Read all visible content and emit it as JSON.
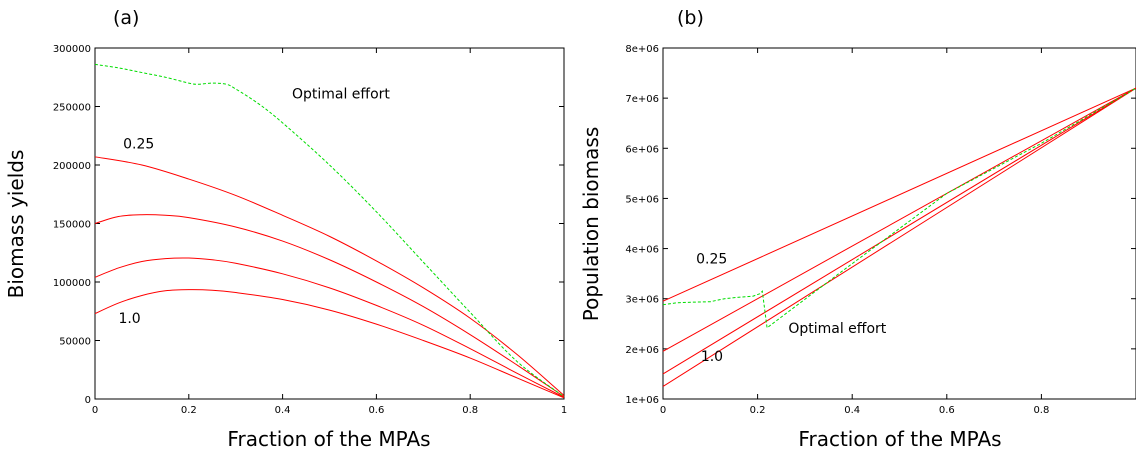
{
  "chart_data": [
    {
      "panel_label": "(a)",
      "type": "line",
      "xlabel": "Fraction of the MPAs",
      "ylabel": "Biomass yields",
      "xlim": [
        0,
        1
      ],
      "ylim": [
        0,
        300000
      ],
      "xticks": [
        0,
        0.2,
        0.4,
        0.6,
        0.8,
        1
      ],
      "xtick_labels": [
        "0",
        "0.2",
        "0.4",
        "0.6",
        "0.8",
        "1"
      ],
      "yticks": [
        0,
        50000,
        100000,
        150000,
        200000,
        250000,
        300000
      ],
      "ytick_labels": [
        "0",
        "50000",
        "100000",
        "150000",
        "200000",
        "250000",
        "300000"
      ],
      "grid": false,
      "series": [
        {
          "color": "#ff0000",
          "dashed": false,
          "x": [
            0,
            0.1,
            0.2,
            0.3,
            0.4,
            0.5,
            0.6,
            0.7,
            0.8,
            0.9,
            1.0
          ],
          "y": [
            207000,
            200000,
            188000,
            174000,
            157000,
            139000,
            118000,
            95000,
            69000,
            38000,
            3000
          ]
        },
        {
          "color": "#ff0000",
          "dashed": false,
          "x": [
            0,
            0.05,
            0.1,
            0.15,
            0.2,
            0.3,
            0.4,
            0.5,
            0.6,
            0.7,
            0.8,
            0.9,
            1.0
          ],
          "y": [
            150000,
            156000,
            157500,
            157000,
            155000,
            147000,
            135000,
            119000,
            100000,
            79000,
            55000,
            29000,
            2000
          ]
        },
        {
          "color": "#ff0000",
          "dashed": false,
          "x": [
            0,
            0.05,
            0.1,
            0.15,
            0.2,
            0.25,
            0.3,
            0.4,
            0.5,
            0.6,
            0.7,
            0.8,
            0.9,
            1.0
          ],
          "y": [
            104000,
            112000,
            117500,
            120000,
            120500,
            119000,
            116000,
            107000,
            95000,
            80000,
            63000,
            43000,
            22000,
            1500
          ]
        },
        {
          "color": "#ff0000",
          "dashed": false,
          "x": [
            0,
            0.05,
            0.1,
            0.15,
            0.2,
            0.25,
            0.3,
            0.4,
            0.5,
            0.6,
            0.7,
            0.8,
            0.9,
            1.0
          ],
          "y": [
            73000,
            82000,
            88500,
            92500,
            93500,
            93000,
            91000,
            85000,
            76000,
            64000,
            50000,
            35000,
            18000,
            1000
          ]
        },
        {
          "color": "#00dd00",
          "dashed": true,
          "x": [
            0,
            0.05,
            0.1,
            0.15,
            0.2,
            0.22,
            0.25,
            0.28,
            0.3,
            0.35,
            0.4,
            0.5,
            0.6,
            0.7,
            0.8,
            0.9,
            1.0
          ],
          "y": [
            286000,
            283000,
            279000,
            275000,
            270000,
            269000,
            270000,
            269000,
            265000,
            252000,
            236000,
            200000,
            160000,
            117000,
            74000,
            32000,
            2000
          ]
        }
      ],
      "annotations": [
        {
          "text": "Optimal effort",
          "x": 0.42,
          "y": 257000
        },
        {
          "text": "0.25",
          "x": 0.06,
          "y": 214000
        },
        {
          "text": "1.0",
          "x": 0.05,
          "y": 65000
        }
      ]
    },
    {
      "panel_label": "(b)",
      "type": "line",
      "xlabel": "Fraction of the MPAs",
      "ylabel": "Population biomass",
      "xlim": [
        0,
        1
      ],
      "ylim": [
        1000000,
        8000000
      ],
      "xticks": [
        0,
        0.2,
        0.4,
        0.6,
        0.8
      ],
      "xtick_labels": [
        "0",
        "0.2",
        "0.4",
        "0.6",
        "0.8"
      ],
      "yticks": [
        1000000,
        2000000,
        3000000,
        4000000,
        5000000,
        6000000,
        7000000,
        8000000
      ],
      "ytick_labels": [
        "1e+06",
        "2e+06",
        "3e+06",
        "4e+06",
        "5e+06",
        "6e+06",
        "7e+06",
        "8e+06"
      ],
      "grid": false,
      "series": [
        {
          "color": "#ff0000",
          "dashed": false,
          "x": [
            0,
            1.0
          ],
          "y": [
            2950000,
            7200000
          ]
        },
        {
          "color": "#ff0000",
          "dashed": false,
          "x": [
            0,
            1.0
          ],
          "y": [
            1950000,
            7200000
          ]
        },
        {
          "color": "#ff0000",
          "dashed": false,
          "x": [
            0,
            1.0
          ],
          "y": [
            1500000,
            7200000
          ]
        },
        {
          "color": "#ff0000",
          "dashed": false,
          "x": [
            0,
            1.0
          ],
          "y": [
            1250000,
            7200000
          ]
        },
        {
          "color": "#00dd00",
          "dashed": true,
          "x": [
            0,
            0.03,
            0.06,
            0.1,
            0.13,
            0.16,
            0.19,
            0.205,
            0.21,
            0.22,
            0.4,
            0.6,
            0.8,
            1.0
          ],
          "y": [
            2880000,
            2920000,
            2930000,
            2940000,
            3000000,
            3030000,
            3050000,
            3100000,
            3150000,
            2420000,
            3700000,
            5100000,
            6100000,
            7200000
          ]
        }
      ],
      "annotations": [
        {
          "text": "0.25",
          "x": 0.07,
          "y": 3700000
        },
        {
          "text": "Optimal effort",
          "x": 0.265,
          "y": 2320000
        },
        {
          "text": "1.0",
          "x": 0.08,
          "y": 1760000
        }
      ]
    }
  ]
}
